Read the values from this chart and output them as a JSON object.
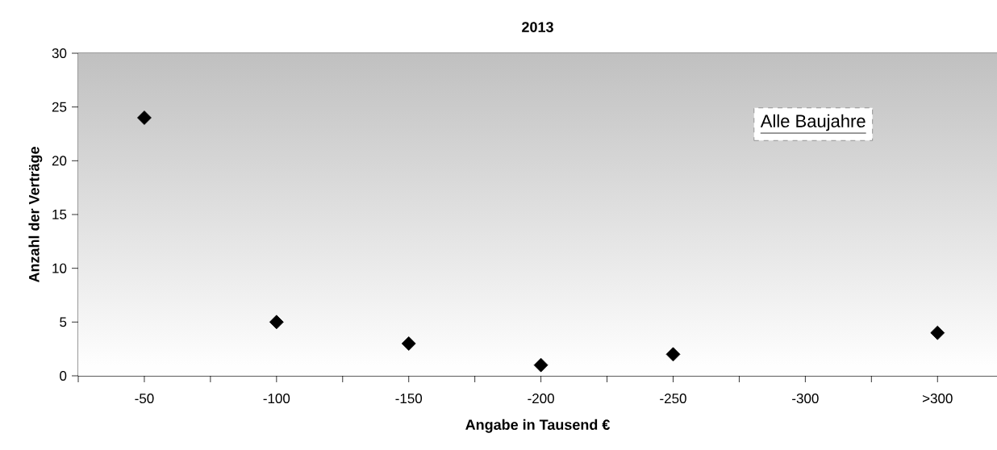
{
  "chart_data": {
    "type": "scatter",
    "title": "2013",
    "xlabel": "Angabe in Tausend €",
    "ylabel": "Anzahl der Verträge",
    "categories": [
      "-50",
      "-100",
      "-150",
      "-200",
      "-250",
      "-300",
      ">300"
    ],
    "series": [
      {
        "color": "#000000",
        "values": [
          24,
          5,
          3,
          1,
          2,
          null,
          4
        ]
      }
    ],
    "ylim": [
      0,
      30
    ],
    "yticks": [
      0,
      5,
      10,
      15,
      20,
      25,
      30
    ],
    "grid": "y",
    "marker": "diamond",
    "annotations": [
      "Alle Baujahre"
    ]
  }
}
